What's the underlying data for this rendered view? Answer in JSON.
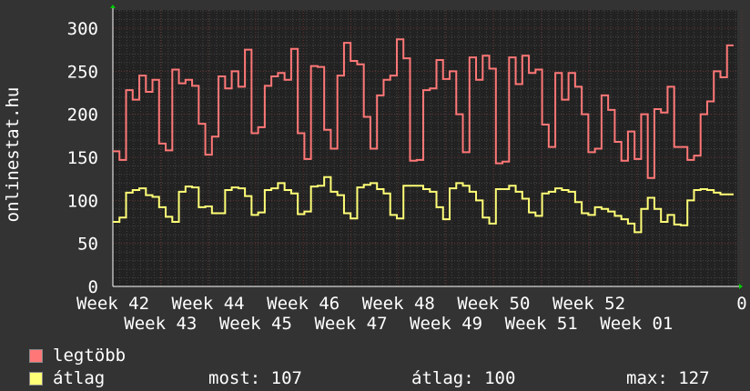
{
  "chart_data": {
    "type": "line",
    "ylabel": "onlinestat.hu",
    "ylim": [
      0,
      320
    ],
    "yticks": [
      0,
      50,
      100,
      150,
      200,
      250,
      300
    ],
    "xticks": [
      "Week 42",
      "Week 43",
      "Week 44",
      "Week 45",
      "Week 46",
      "Week 47",
      "Week 48",
      "Week 49",
      "Week 50",
      "Week 51",
      "Week 52",
      "Week 01",
      "0"
    ],
    "grid": true,
    "background": "#222222",
    "series": [
      {
        "name": "legtöbb",
        "color": "#ff7777",
        "values": [
          157,
          147,
          228,
          217,
          245,
          226,
          240,
          166,
          158,
          252,
          236,
          240,
          233,
          189,
          153,
          174,
          244,
          230,
          250,
          232,
          275,
          178,
          185,
          233,
          244,
          248,
          240,
          276,
          178,
          148,
          256,
          255,
          182,
          160,
          245,
          283,
          262,
          258,
          197,
          160,
          222,
          240,
          245,
          287,
          265,
          146,
          147,
          228,
          230,
          263,
          241,
          250,
          200,
          156,
          266,
          240,
          268,
          253,
          143,
          145,
          266,
          235,
          268,
          248,
          252,
          188,
          162,
          248,
          217,
          248,
          232,
          200,
          156,
          160,
          222,
          205,
          168,
          146,
          180,
          148,
          200,
          126,
          206,
          202,
          232,
          162,
          162,
          147,
          152,
          200,
          215,
          250,
          243,
          280
        ]
      },
      {
        "name": "átlag",
        "color": "#ffff77",
        "values": [
          75,
          80,
          109,
          112,
          114,
          106,
          104,
          92,
          81,
          75,
          110,
          116,
          115,
          92,
          93,
          85,
          85,
          112,
          115,
          114,
          105,
          83,
          86,
          112,
          114,
          120,
          112,
          108,
          84,
          87,
          116,
          117,
          127,
          110,
          106,
          85,
          79,
          115,
          118,
          120,
          113,
          108,
          83,
          79,
          117,
          117,
          117,
          113,
          110,
          92,
          78,
          114,
          120,
          117,
          110,
          100,
          80,
          73,
          113,
          113,
          117,
          110,
          102,
          86,
          82,
          108,
          110,
          114,
          112,
          110,
          98,
          85,
          83,
          92,
          90,
          87,
          82,
          78,
          73,
          63,
          90,
          103,
          90,
          75,
          83,
          72,
          71,
          100,
          112,
          113,
          112,
          109,
          107,
          107
        ]
      }
    ]
  },
  "legend": {
    "max_label": "legtöbb",
    "avg_label": "átlag",
    "now": "most: 107",
    "avg": "átlag: 100",
    "peak": "max: 127"
  }
}
